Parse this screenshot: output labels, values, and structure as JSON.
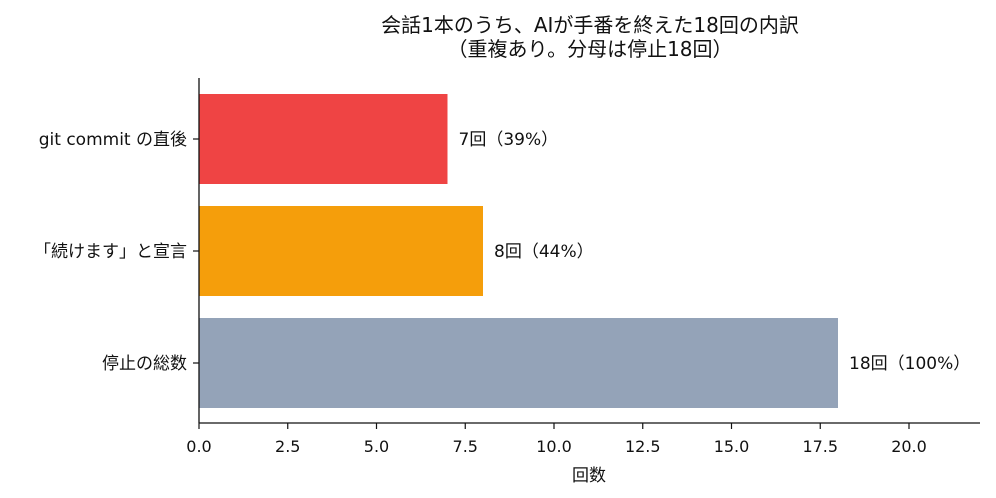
{
  "chart_data": {
    "type": "bar",
    "orientation": "horizontal",
    "title": [
      "会話1本のうち、AIが手番を終えた18回の内訳",
      "（重複あり。分母は停止18回）"
    ],
    "xlabel": "回数",
    "ylabel": "",
    "xlim": [
      0,
      22
    ],
    "xticks": [
      "0.0",
      "2.5",
      "5.0",
      "7.5",
      "10.0",
      "12.5",
      "15.0",
      "17.5",
      "20.0"
    ],
    "grid": false,
    "categories": [
      "git commit の直後",
      "「続けます」と宣言",
      "停止の総数"
    ],
    "values": [
      7,
      8,
      18
    ],
    "bar_labels": [
      "7回（39%）",
      "8回（44%）",
      "18回（100%）"
    ],
    "colors": [
      "#ef4444",
      "#f59e0b",
      "#94a3b8"
    ]
  }
}
